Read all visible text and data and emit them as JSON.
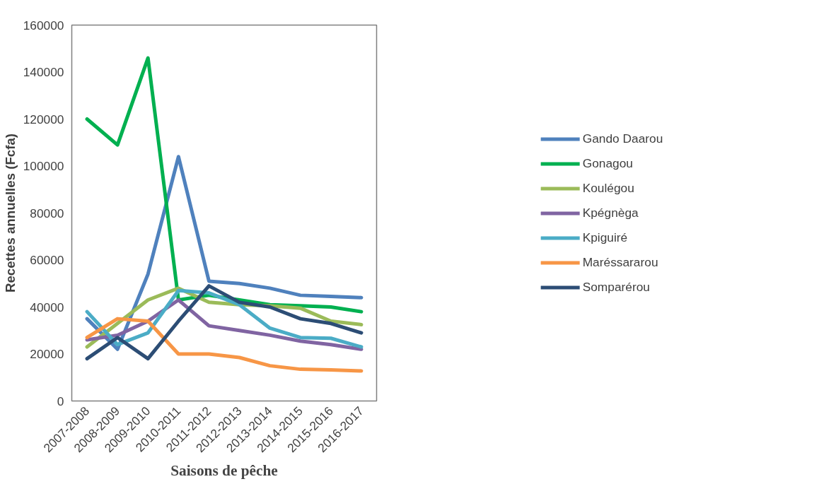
{
  "chart_data": {
    "type": "line",
    "xlabel": "Saisons de pêche",
    "ylabel": "Recettes annuelles (Fcfa)",
    "categories": [
      "2007-2008",
      "2008-2009",
      "2009-2010",
      "2010-2011",
      "2011-2012",
      "2012-2013",
      "2013-2014",
      "2014-2015",
      "2015-2016",
      "2016-2017"
    ],
    "series": [
      {
        "name": "Gando Daarou",
        "color": "#4f81bd",
        "values": [
          35000,
          22000,
          54000,
          104000,
          51000,
          50000,
          48000,
          45000,
          44500,
          44000
        ]
      },
      {
        "name": "Gonagou",
        "color": "#00b050",
        "values": [
          120000,
          109000,
          146000,
          43000,
          45000,
          43000,
          41000,
          40500,
          40000,
          38000
        ]
      },
      {
        "name": "Koulégou",
        "color": "#9bbb59",
        "values": [
          23000,
          33000,
          43000,
          48000,
          42000,
          41000,
          40500,
          39500,
          34000,
          32500
        ]
      },
      {
        "name": "Kpégnèga",
        "color": "#8064a2",
        "values": [
          26000,
          28000,
          34000,
          43000,
          32000,
          30000,
          28000,
          25500,
          24000,
          22000
        ]
      },
      {
        "name": "Kpiguiré",
        "color": "#4bacc6",
        "values": [
          38000,
          24000,
          29000,
          47000,
          46000,
          41000,
          31000,
          27000,
          26700,
          23000
        ]
      },
      {
        "name": "Maréssararou",
        "color": "#f79646",
        "values": [
          27000,
          35000,
          34000,
          20000,
          20000,
          18500,
          15000,
          13500,
          13200,
          12800
        ]
      },
      {
        "name": "Somparérou",
        "color": "#2c4d75",
        "values": [
          18000,
          27000,
          18000,
          34000,
          49000,
          42000,
          40000,
          35000,
          33000,
          29000
        ]
      }
    ],
    "ylim": [
      0,
      160000
    ],
    "yticks": [
      0,
      20000,
      40000,
      60000,
      80000,
      100000,
      120000,
      140000,
      160000
    ],
    "grid": false,
    "legend": "right",
    "marker": "none",
    "line_style": "solid"
  }
}
